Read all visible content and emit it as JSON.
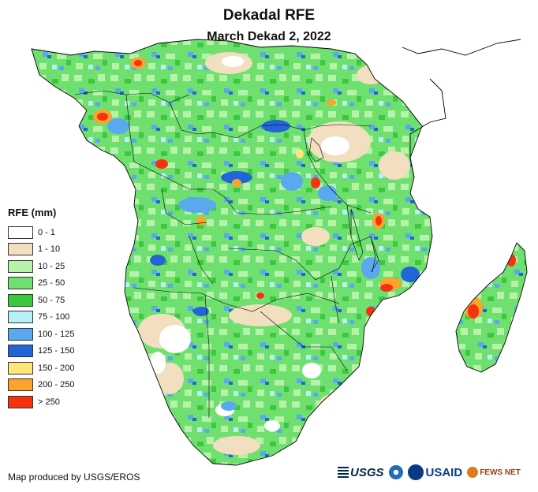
{
  "title": "Dekadal RFE",
  "subtitle": "March Dekad 2, 2022",
  "legend": {
    "title": "RFE (mm)",
    "items": [
      {
        "label": "0 - 1",
        "color": "#ffffff"
      },
      {
        "label": "1 - 10",
        "color": "#f1dfc0"
      },
      {
        "label": "10 - 25",
        "color": "#b6f2a8"
      },
      {
        "label": "25 - 50",
        "color": "#6fe070"
      },
      {
        "label": "50 - 75",
        "color": "#3cc83c"
      },
      {
        "label": "75 - 100",
        "color": "#b8f0f8"
      },
      {
        "label": "100 - 125",
        "color": "#5aa8ee"
      },
      {
        "label": "125 - 150",
        "color": "#2266d6"
      },
      {
        "label": "150 - 200",
        "color": "#fde67a"
      },
      {
        "label": "200 - 250",
        "color": "#fba32a"
      },
      {
        "label": "> 250",
        "color": "#f53210"
      }
    ]
  },
  "credit": "Map produced by USGS/EROS",
  "logos": {
    "usgs": "USGS",
    "usaid": "USAID",
    "fews": "FEWS NET"
  },
  "colors": {
    "background": "#ffffff",
    "border": "#000000"
  }
}
